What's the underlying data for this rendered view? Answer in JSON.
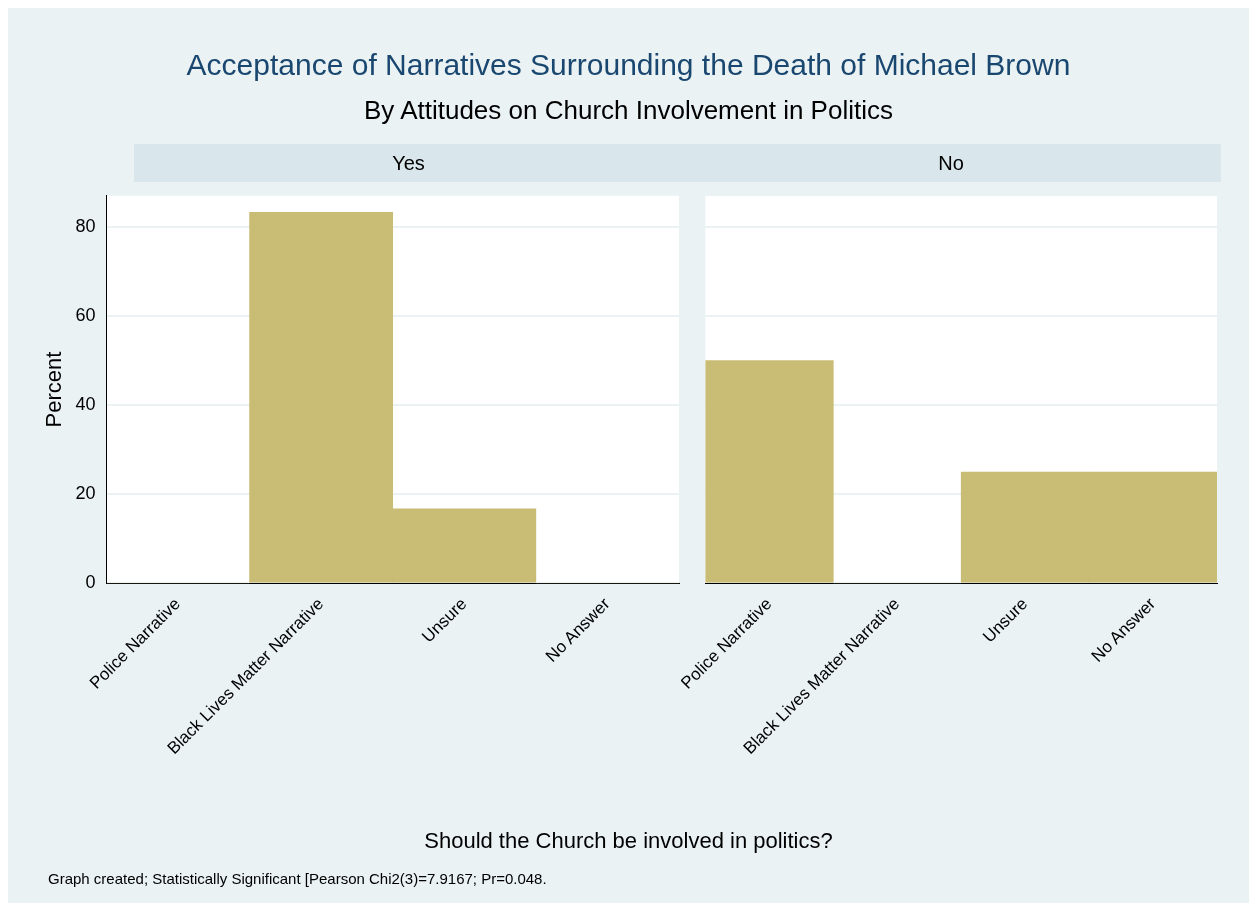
{
  "chart_data": [
    {
      "type": "bar",
      "title": "Acceptance of Narratives Surrounding the Death of Michael Brown",
      "subtitle": "By Attitudes on Church Involvement in Politics",
      "xlabel": "Should the Church be involved in politics?",
      "ylabel": "Percent",
      "annotations": [
        "Yes",
        "Graph created; Statistically Significant [Pearson Chi2(3)=7.9167; Pr=0.048."
      ],
      "categories": [
        "Police Narrative",
        "Black Lives Matter Narrative",
        "Unsure",
        "No Answer"
      ],
      "values": [
        0,
        83.3,
        16.7,
        0
      ],
      "color": "#c9bc74",
      "ylim": [
        0,
        87
      ],
      "yticks": [
        0,
        20,
        40,
        60,
        80
      ],
      "grid": "y"
    },
    {
      "type": "bar",
      "annotations": [
        "No"
      ],
      "categories": [
        "Police Narrative",
        "Black Lives Matter Narrative",
        "Unsure",
        "No Answer"
      ],
      "values": [
        50,
        0,
        25,
        25
      ],
      "color": "#c9bc74",
      "ylim": [
        0,
        87
      ],
      "yticks": [
        0,
        20,
        40,
        60,
        80
      ],
      "grid": "y",
      "tick_labels": "x"
    }
  ]
}
